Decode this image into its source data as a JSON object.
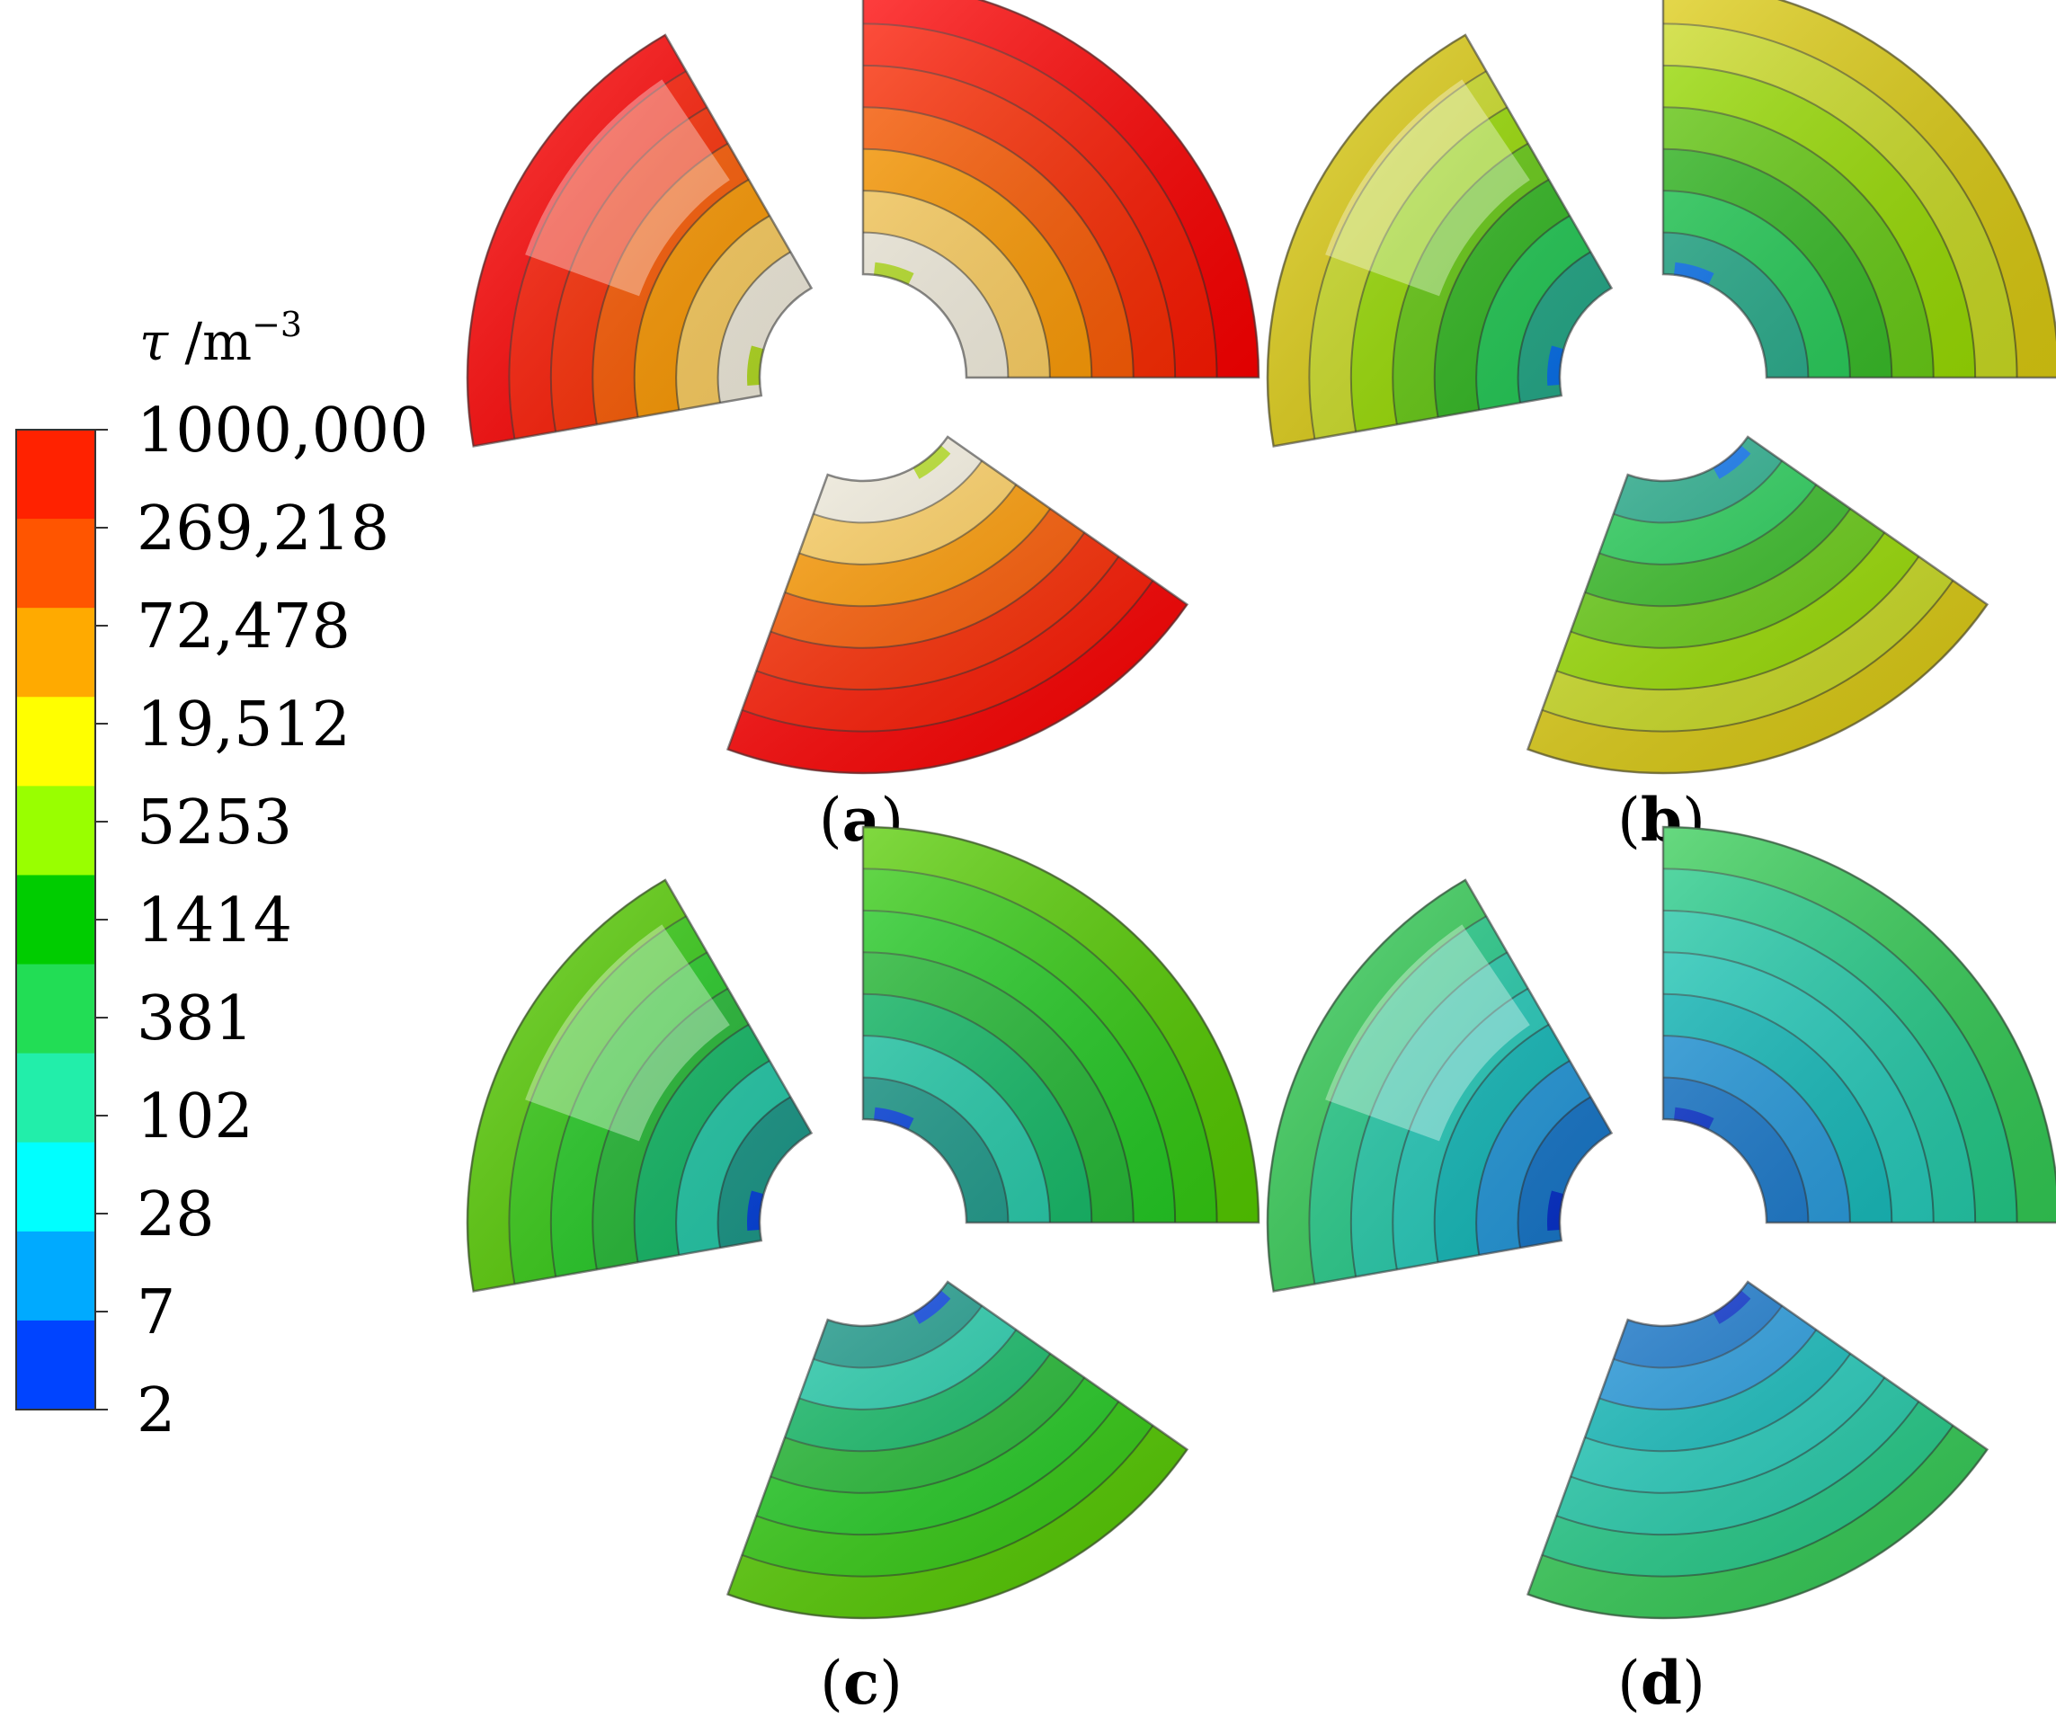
{
  "legend": {
    "unit_symbol": "τ",
    "unit_base": " /m",
    "unit_exponent": "−3",
    "ticks": [
      "1000,000",
      "269,218",
      "72,478",
      "19,512",
      "5253",
      "1414",
      "381",
      "102",
      "28",
      "7",
      "2"
    ],
    "colors": [
      "#ff2200",
      "#ff5500",
      "#ffaa00",
      "#ffff00",
      "#99ff00",
      "#00cc00",
      "#22dd55",
      "#22eeaa",
      "#00ffff",
      "#00aaff",
      "#0044ff"
    ]
  },
  "panels": [
    {
      "label": "a",
      "colors": [
        "#f5f0e0",
        "#ffd060",
        "#ff9a00",
        "#ff5a00",
        "#ff2a00",
        "#ff1800",
        "#ff0000"
      ],
      "tip_color": "#aadd00"
    },
    {
      "label": "b",
      "colors": [
        "#22aa88",
        "#22cc55",
        "#33bb22",
        "#66cc11",
        "#99dd00",
        "#ccdd22",
        "#ddcc11"
      ],
      "tip_color": "#0066ff"
    },
    {
      "label": "c",
      "colors": [
        "#1a9a8a",
        "#22ccaa",
        "#11bb66",
        "#22bb33",
        "#22cc22",
        "#33cc11",
        "#55cc00"
      ],
      "tip_color": "#0033ee"
    },
    {
      "label": "d",
      "colors": [
        "#1577cc",
        "#2299dd",
        "#11bbbb",
        "#22ccbb",
        "#22ccaa",
        "#22cc88",
        "#33cc55"
      ],
      "tip_color": "#0022cc"
    }
  ]
}
